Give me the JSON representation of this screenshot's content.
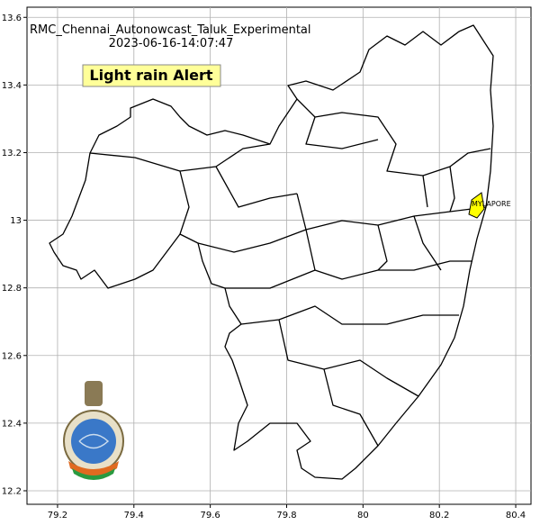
{
  "map": {
    "title": "RMC_Chennai_Autonowcast_Taluk_Experimental",
    "timestamp": "2023-06-16-14:07:47",
    "alert": "Light rain Alert",
    "alert_color": "#ffff99",
    "xlim": [
      79.12,
      80.44
    ],
    "ylim": [
      12.16,
      13.63
    ],
    "xticks": [
      79.2,
      79.4,
      79.6,
      79.8,
      80.0,
      80.2,
      80.4
    ],
    "yticks": [
      12.2,
      12.4,
      12.6,
      12.8,
      13.0,
      13.2,
      13.4,
      13.6
    ],
    "grid": true,
    "regions": [
      {
        "label": "MYLAPORE",
        "color": "#ffff00"
      }
    ]
  }
}
